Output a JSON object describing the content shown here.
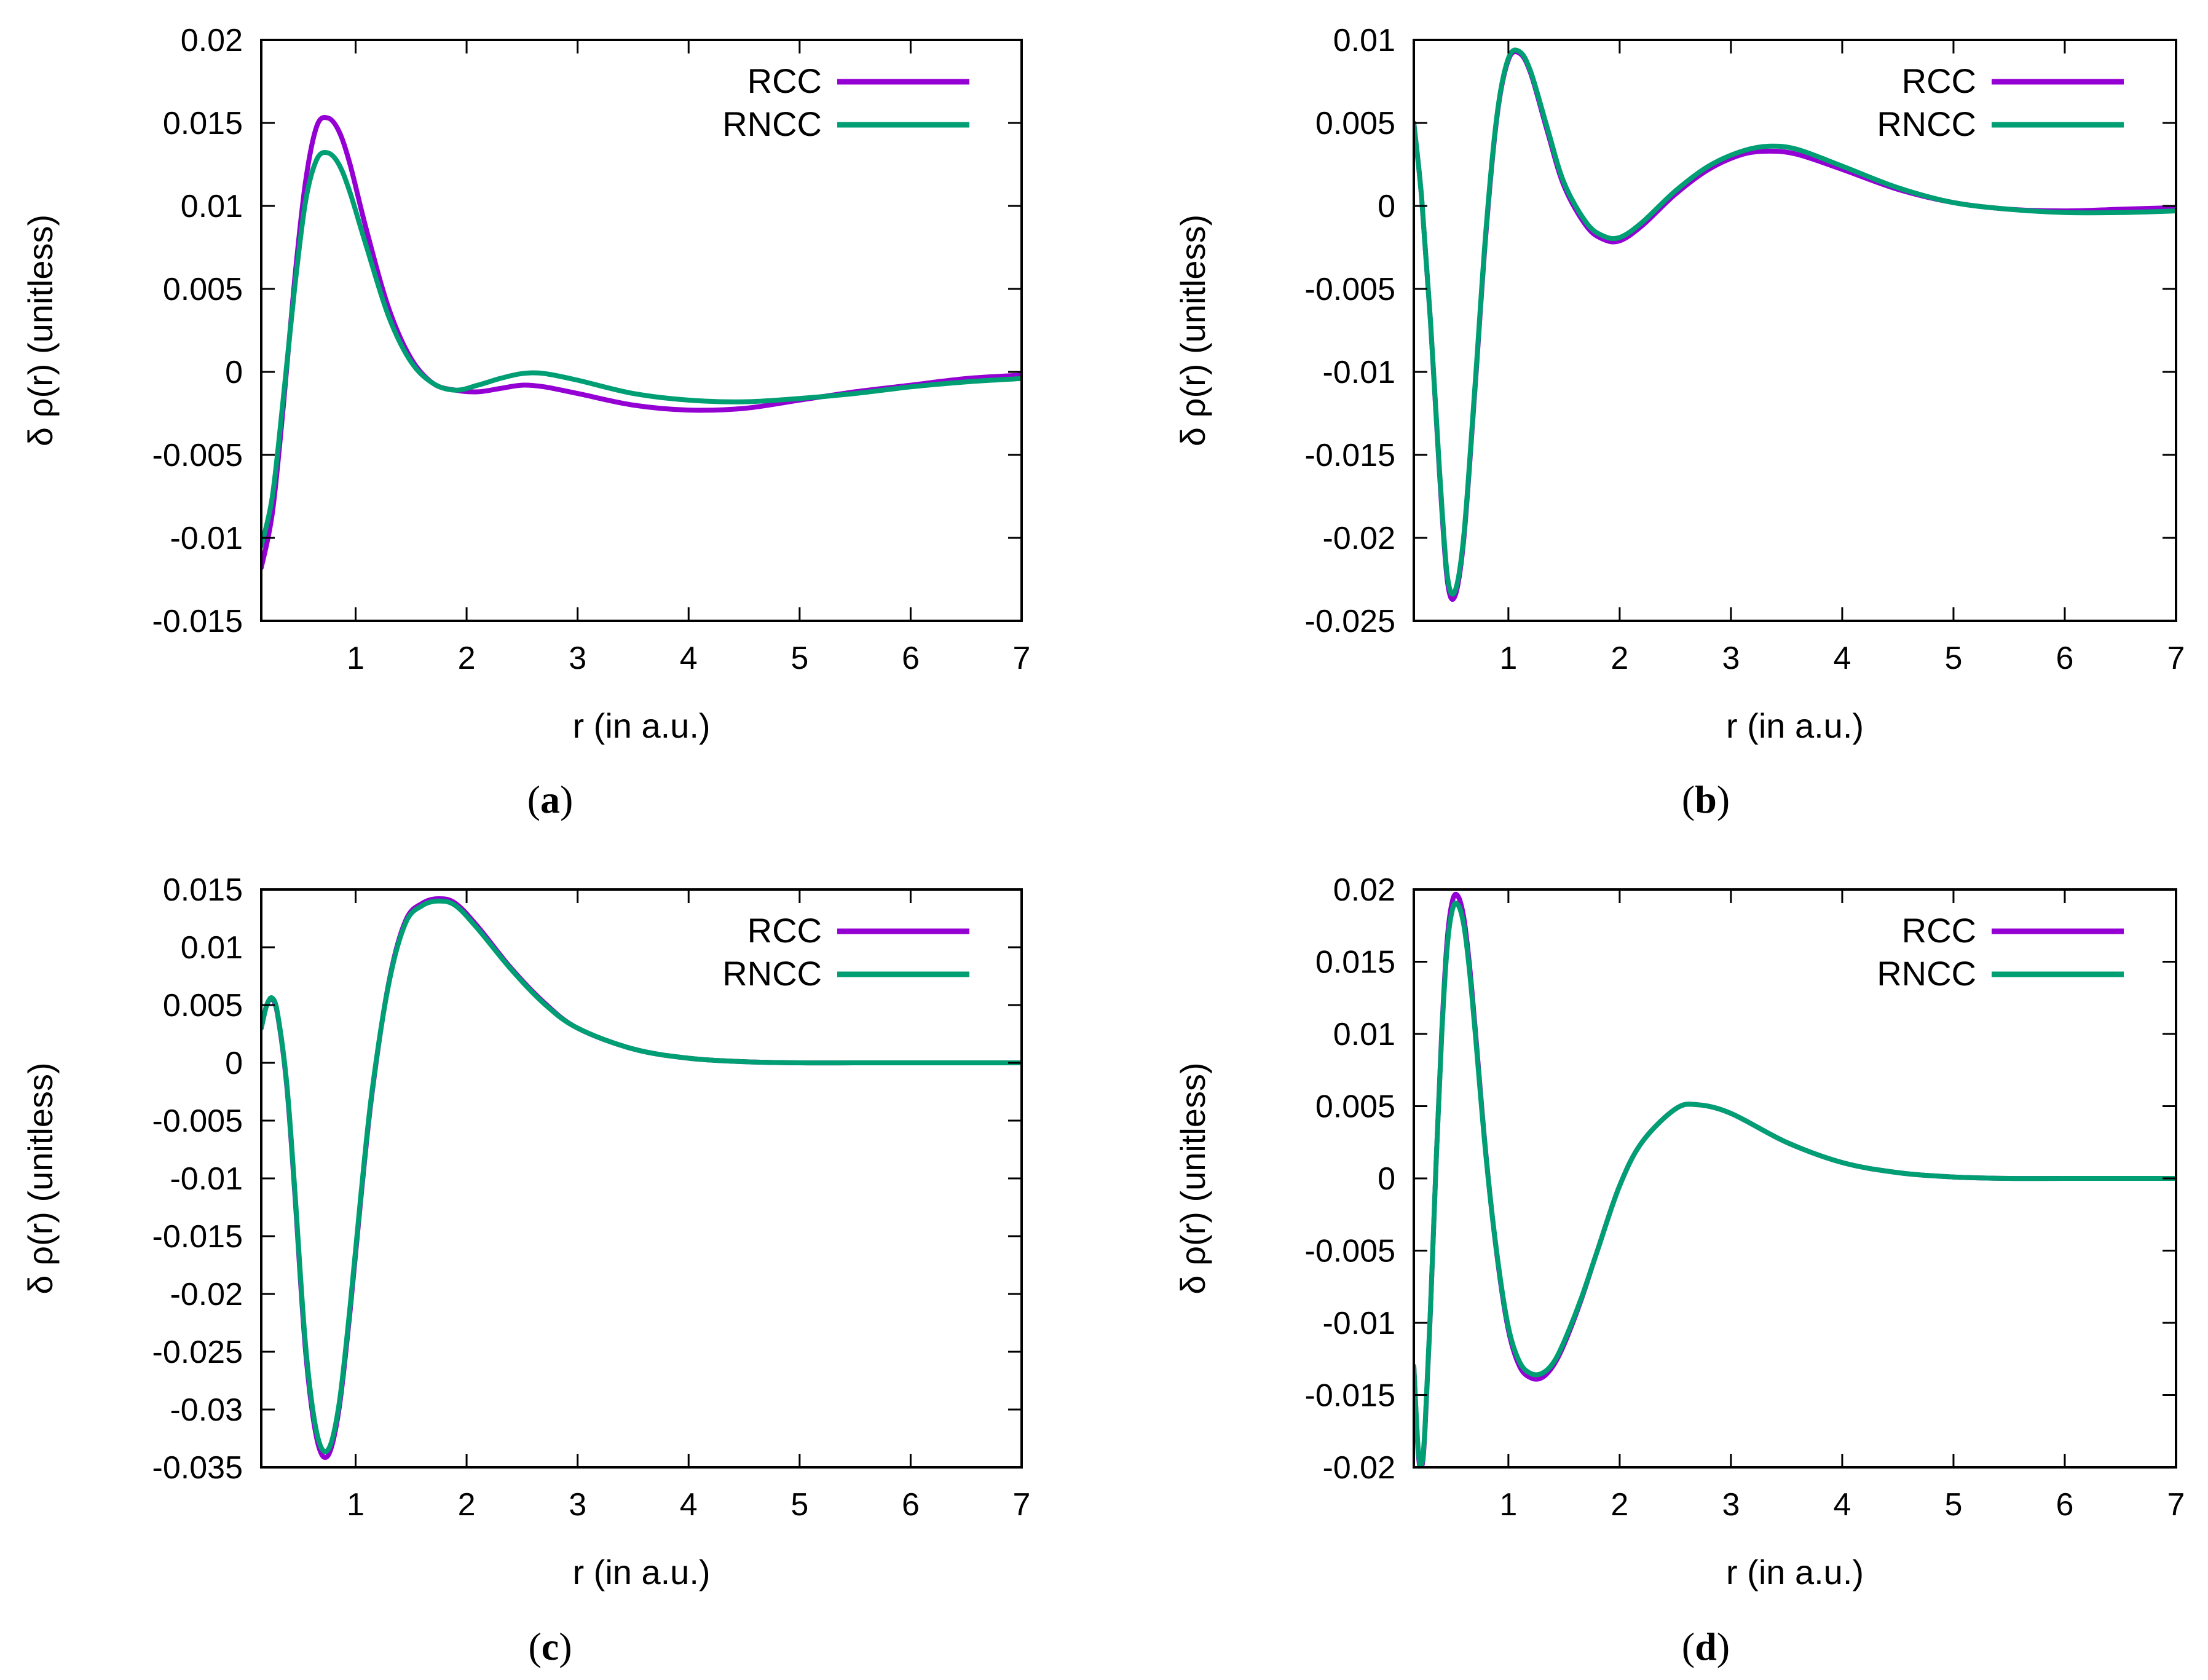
{
  "colors": {
    "rcc": "#9400d3",
    "rncc": "#009e73"
  },
  "chart_data": [
    {
      "id": "a",
      "type": "line",
      "caption": "a",
      "xlabel": "r (in a.u.)",
      "ylabel": "δ ρ(r) (unitless)",
      "xlim": [
        0.15,
        7
      ],
      "ylim": [
        -0.015,
        0.02
      ],
      "xticks": [
        1,
        2,
        3,
        4,
        5,
        6,
        7
      ],
      "xtick_labels": [
        "1",
        "2",
        "3",
        "4",
        "5",
        "6",
        "7"
      ],
      "yticks": [
        -0.015,
        -0.01,
        -0.005,
        0,
        0.005,
        0.01,
        0.015,
        0.02
      ],
      "ytick_labels": [
        "-0.015",
        "-0.01",
        "-0.005",
        "0",
        "0.005",
        "0.01",
        "0.015",
        "0.02"
      ],
      "legend": [
        "RCC",
        "RNCC"
      ],
      "legend_position": "top-right",
      "series": [
        {
          "name": "RCC",
          "color_key": "rcc",
          "x": [
            0.15,
            0.25,
            0.35,
            0.45,
            0.55,
            0.65,
            0.75,
            0.85,
            0.95,
            1.1,
            1.3,
            1.5,
            1.7,
            1.9,
            2.1,
            2.3,
            2.5,
            2.7,
            3.0,
            3.5,
            4.0,
            4.5,
            5.0,
            5.5,
            6.0,
            6.5,
            7.0
          ],
          "y": [
            -0.0118,
            -0.0085,
            -0.002,
            0.0055,
            0.0115,
            0.0148,
            0.0153,
            0.0145,
            0.0125,
            0.0085,
            0.0038,
            0.0008,
            -0.0007,
            -0.0011,
            -0.0012,
            -0.001,
            -0.0008,
            -0.0009,
            -0.0013,
            -0.002,
            -0.0023,
            -0.0022,
            -0.0017,
            -0.0012,
            -0.0008,
            -0.0004,
            -0.0002
          ]
        },
        {
          "name": "RNCC",
          "color_key": "rncc",
          "x": [
            0.15,
            0.25,
            0.35,
            0.45,
            0.55,
            0.65,
            0.75,
            0.85,
            0.95,
            1.1,
            1.3,
            1.5,
            1.7,
            1.9,
            2.1,
            2.3,
            2.5,
            2.7,
            3.0,
            3.5,
            4.0,
            4.5,
            5.0,
            5.5,
            6.0,
            6.5,
            7.0
          ],
          "y": [
            -0.0105,
            -0.0075,
            -0.0015,
            0.005,
            0.0103,
            0.0128,
            0.0132,
            0.0125,
            0.0108,
            0.0075,
            0.0033,
            0.0006,
            -0.0007,
            -0.0011,
            -0.0008,
            -0.0004,
            -0.0001,
            -0.0001,
            -0.0005,
            -0.0013,
            -0.0017,
            -0.0018,
            -0.0016,
            -0.0013,
            -0.0009,
            -0.0006,
            -0.0004
          ]
        }
      ]
    },
    {
      "id": "b",
      "type": "line",
      "caption": "b",
      "xlabel": "r (in a.u.)",
      "ylabel": "δ ρ(r) (unitless)",
      "xlim": [
        0.15,
        7
      ],
      "ylim": [
        -0.025,
        0.01
      ],
      "xticks": [
        1,
        2,
        3,
        4,
        5,
        6,
        7
      ],
      "xtick_labels": [
        "1",
        "2",
        "3",
        "4",
        "5",
        "6",
        "7"
      ],
      "yticks": [
        -0.025,
        -0.02,
        -0.015,
        -0.01,
        -0.005,
        0,
        0.005,
        0.01
      ],
      "ytick_labels": [
        "-0.025",
        "-0.02",
        "-0.015",
        "-0.01",
        "-0.005",
        "0",
        "0.005",
        "0.01"
      ],
      "legend": [
        "RCC",
        "RNCC"
      ],
      "legend_position": "top-right",
      "series": [
        {
          "name": "RCC",
          "color_key": "rcc",
          "x": [
            0.15,
            0.22,
            0.3,
            0.38,
            0.45,
            0.52,
            0.6,
            0.7,
            0.8,
            0.9,
            1.0,
            1.1,
            1.2,
            1.35,
            1.5,
            1.7,
            1.85,
            2.0,
            2.2,
            2.5,
            2.8,
            3.1,
            3.35,
            3.6,
            4.0,
            4.5,
            5.0,
            5.5,
            6.0,
            6.5,
            7.0
          ],
          "y": [
            0.005,
            0.0005,
            -0.007,
            -0.016,
            -0.0225,
            -0.0235,
            -0.02,
            -0.011,
            -0.0015,
            0.0055,
            0.0088,
            0.0092,
            0.008,
            0.0045,
            0.0012,
            -0.0012,
            -0.002,
            -0.0021,
            -0.0012,
            0.0007,
            0.0022,
            0.0031,
            0.0033,
            0.0031,
            0.0022,
            0.001,
            0.0002,
            -0.0002,
            -0.0003,
            -0.0002,
            -0.0001
          ]
        },
        {
          "name": "RNCC",
          "color_key": "rncc",
          "x": [
            0.15,
            0.22,
            0.3,
            0.38,
            0.45,
            0.52,
            0.6,
            0.7,
            0.8,
            0.9,
            1.0,
            1.1,
            1.2,
            1.35,
            1.5,
            1.7,
            1.85,
            2.0,
            2.2,
            2.5,
            2.8,
            3.1,
            3.35,
            3.6,
            4.0,
            4.5,
            5.0,
            5.5,
            6.0,
            6.5,
            7.0
          ],
          "y": [
            0.005,
            0.0005,
            -0.007,
            -0.0158,
            -0.0222,
            -0.0232,
            -0.0198,
            -0.0108,
            -0.0013,
            0.0056,
            0.0089,
            0.0093,
            0.0081,
            0.0047,
            0.0014,
            -0.001,
            -0.0018,
            -0.0019,
            -0.001,
            0.0009,
            0.0024,
            0.0033,
            0.0036,
            0.0034,
            0.0024,
            0.0011,
            0.0002,
            -0.0002,
            -0.0004,
            -0.0004,
            -0.0003
          ]
        }
      ]
    },
    {
      "id": "c",
      "type": "line",
      "caption": "c",
      "xlabel": "r (in a.u.)",
      "ylabel": "δ ρ(r) (unitless)",
      "xlim": [
        0.15,
        7
      ],
      "ylim": [
        -0.035,
        0.015
      ],
      "xticks": [
        1,
        2,
        3,
        4,
        5,
        6,
        7
      ],
      "xtick_labels": [
        "1",
        "2",
        "3",
        "4",
        "5",
        "6",
        "7"
      ],
      "yticks": [
        -0.035,
        -0.03,
        -0.025,
        -0.02,
        -0.015,
        -0.01,
        -0.005,
        0,
        0.005,
        0.01,
        0.015
      ],
      "ytick_labels": [
        "-0.035",
        "-0.03",
        "-0.025",
        "-0.02",
        "-0.015",
        "-0.01",
        "-0.005",
        "0",
        "0.005",
        "0.01",
        "0.015"
      ],
      "legend": [
        "RCC",
        "RNCC"
      ],
      "legend_position": "top-right",
      "series": [
        {
          "name": "RCC",
          "color_key": "rcc",
          "x": [
            0.15,
            0.2,
            0.25,
            0.3,
            0.38,
            0.45,
            0.55,
            0.65,
            0.75,
            0.85,
            0.95,
            1.05,
            1.15,
            1.3,
            1.45,
            1.6,
            1.75,
            1.9,
            2.1,
            2.4,
            2.7,
            3.0,
            3.5,
            4.0,
            4.5,
            5.0,
            5.5,
            6.0,
            7.0
          ],
          "y": [
            0.003,
            0.005,
            0.0055,
            0.004,
            -0.002,
            -0.011,
            -0.025,
            -0.0325,
            -0.034,
            -0.03,
            -0.0215,
            -0.0115,
            -0.0025,
            0.007,
            0.0123,
            0.0138,
            0.0142,
            0.0138,
            0.0118,
            0.0082,
            0.0052,
            0.003,
            0.0012,
            0.0004,
            0.0001,
            0.0,
            0.0,
            0.0,
            0.0
          ]
        },
        {
          "name": "RNCC",
          "color_key": "rncc",
          "x": [
            0.15,
            0.2,
            0.25,
            0.3,
            0.38,
            0.45,
            0.55,
            0.65,
            0.75,
            0.85,
            0.95,
            1.05,
            1.15,
            1.3,
            1.45,
            1.6,
            1.75,
            1.9,
            2.1,
            2.4,
            2.7,
            3.0,
            3.5,
            4.0,
            4.5,
            5.0,
            5.5,
            6.0,
            7.0
          ],
          "y": [
            0.003,
            0.005,
            0.0056,
            0.0041,
            -0.0018,
            -0.0107,
            -0.0245,
            -0.032,
            -0.0335,
            -0.0296,
            -0.0211,
            -0.0112,
            -0.0023,
            0.0069,
            0.0121,
            0.0136,
            0.014,
            0.0136,
            0.0116,
            0.0081,
            0.0051,
            0.003,
            0.0012,
            0.0004,
            0.0001,
            0.0,
            0.0,
            0.0,
            0.0
          ]
        }
      ]
    },
    {
      "id": "d",
      "type": "line",
      "caption": "d",
      "xlabel": "r (in a.u.)",
      "ylabel": "δ ρ(r) (unitless)",
      "xlim": [
        0.15,
        7
      ],
      "ylim": [
        -0.02,
        0.02
      ],
      "xticks": [
        1,
        2,
        3,
        4,
        5,
        6,
        7
      ],
      "xtick_labels": [
        "1",
        "2",
        "3",
        "4",
        "5",
        "6",
        "7"
      ],
      "yticks": [
        -0.02,
        -0.015,
        -0.01,
        -0.005,
        0,
        0.005,
        0.01,
        0.015,
        0.02
      ],
      "ytick_labels": [
        "-0.02",
        "-0.015",
        "-0.01",
        "-0.005",
        "0",
        "0.005",
        "0.01",
        "0.015",
        "0.02"
      ],
      "legend": [
        "RCC",
        "RNCC"
      ],
      "legend_position": "top-right",
      "series": [
        {
          "name": "RCC",
          "color_key": "rcc",
          "x": [
            0.15,
            0.19,
            0.22,
            0.25,
            0.3,
            0.35,
            0.4,
            0.45,
            0.5,
            0.55,
            0.6,
            0.65,
            0.7,
            0.8,
            0.9,
            1.0,
            1.1,
            1.2,
            1.3,
            1.4,
            1.5,
            1.65,
            1.8,
            2.0,
            2.2,
            2.5,
            2.7,
            3.0,
            3.5,
            4.0,
            4.5,
            5.0,
            5.5,
            6.0,
            7.0
          ],
          "y": [
            -0.013,
            -0.019,
            -0.02,
            -0.0175,
            -0.009,
            0.001,
            0.01,
            0.0165,
            0.0193,
            0.0195,
            0.018,
            0.0148,
            0.0105,
            0.0015,
            -0.0055,
            -0.0105,
            -0.013,
            -0.0138,
            -0.0138,
            -0.013,
            -0.0115,
            -0.0085,
            -0.005,
            -0.0005,
            0.0025,
            0.0048,
            0.0051,
            0.0045,
            0.0025,
            0.0011,
            0.0004,
            0.0001,
            0.0,
            0.0,
            0.0
          ]
        },
        {
          "name": "RNCC",
          "color_key": "rncc",
          "x": [
            0.15,
            0.19,
            0.22,
            0.25,
            0.3,
            0.35,
            0.4,
            0.45,
            0.5,
            0.55,
            0.6,
            0.65,
            0.7,
            0.8,
            0.9,
            1.0,
            1.1,
            1.2,
            1.3,
            1.4,
            1.5,
            1.65,
            1.8,
            2.0,
            2.2,
            2.5,
            2.7,
            3.0,
            3.5,
            4.0,
            4.5,
            5.0,
            5.5,
            6.0,
            7.0
          ],
          "y": [
            -0.013,
            -0.0188,
            -0.0198,
            -0.0173,
            -0.0089,
            0.001,
            0.0098,
            0.016,
            0.0187,
            0.0189,
            0.0175,
            0.0144,
            0.0102,
            0.0014,
            -0.0054,
            -0.0103,
            -0.0127,
            -0.0135,
            -0.0135,
            -0.0128,
            -0.0113,
            -0.0084,
            -0.005,
            -0.0005,
            0.0025,
            0.0048,
            0.0051,
            0.0045,
            0.0025,
            0.0011,
            0.0004,
            0.0001,
            0.0,
            0.0,
            0.0
          ]
        }
      ]
    }
  ]
}
